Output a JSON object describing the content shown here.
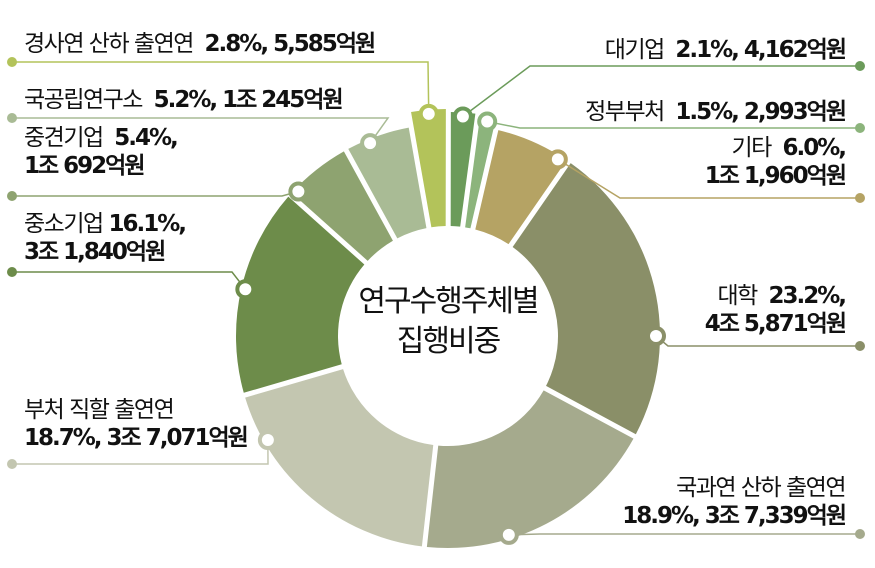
{
  "chart_data": {
    "type": "pie",
    "variant": "donut",
    "title": "연구수행주체별 집행비중",
    "unit": "%",
    "categories": [
      "경사연 산하 출연연",
      "대기업",
      "정부부처",
      "기타",
      "대학",
      "국과연 산하 출연연",
      "부처 직할 출연연",
      "중소기업",
      "중견기업",
      "국공립연구소"
    ],
    "values": [
      2.8,
      2.1,
      1.5,
      6.0,
      23.2,
      18.9,
      18.7,
      16.1,
      5.4,
      5.2
    ],
    "amounts": [
      "5,585억원",
      "4,162억원",
      "2,993억원",
      "1조 1,960억원",
      "4조 5,871억원",
      "3조 7,339억원",
      "3조 7,071억원",
      "3조 1,840억원",
      "1조 692억원",
      "1조 245억원"
    ],
    "colors": [
      "#b3c35a",
      "#6b9b5a",
      "#8cb47c",
      "#b5a364",
      "#8a8f68",
      "#a5aa8d",
      "#c3c6b0",
      "#6d8c4a",
      "#8ea370",
      "#a9bb95"
    ],
    "legend": "none (callout labels)"
  },
  "center": {
    "line1": "연구수행주체별",
    "line2": "집행비중"
  },
  "labels": {
    "gyeongsa": {
      "name": "경사연 산하 출연연",
      "value": "2.8%, 5,585억원"
    },
    "daegieop": {
      "name": "대기업",
      "value": "2.1%, 4,162억원"
    },
    "jeongbu": {
      "name": "정부부처",
      "value": "1.5%, 2,993억원"
    },
    "gita": {
      "name": "기타",
      "value1": "6.0%,",
      "value2": "1조 1,960억원"
    },
    "daehak": {
      "name": "대학",
      "value1": "23.2%,",
      "value2": "4조 5,871억원"
    },
    "gukgwa": {
      "name": "국과연 산하 출연연",
      "value": "18.9%, 3조 7,339억원"
    },
    "bucheo": {
      "name": "부처 직할 출연연",
      "value": "18.7%, 3조 7,071억원"
    },
    "jungso": {
      "name": "중소기업",
      "value1": "16.1%,",
      "value2": "3조 1,840억원"
    },
    "junggyeon": {
      "name": "중견기업",
      "value1": "5.4%,",
      "value2": "1조 692억원"
    },
    "gukgong": {
      "name": "국공립연구소",
      "value": "5.2%, 1조 245억원"
    }
  }
}
